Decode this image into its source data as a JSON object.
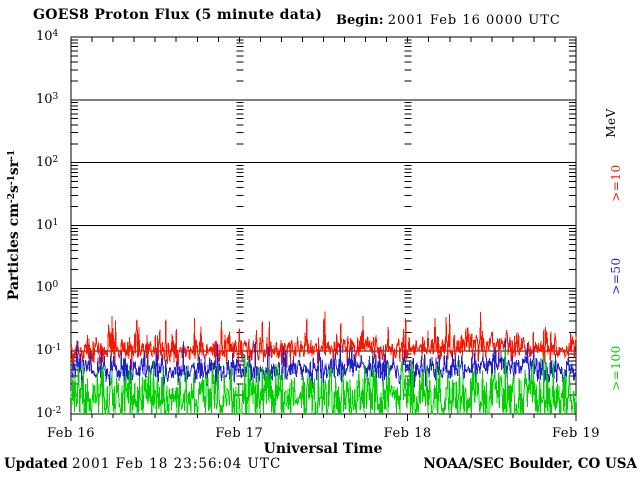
{
  "chart_data": {
    "type": "line",
    "title": "GOES8 Proton Flux (5 minute data)",
    "begin_label": "Begin:",
    "begin_value": "2001 Feb 16 0000 UTC",
    "xlabel": "Universal Time",
    "ylabel_parts": {
      "base": "Particles cm",
      "sup1": "-2",
      "mid1": "s",
      "sup2": "-1",
      "mid2": "sr",
      "sup3": "-1"
    },
    "units_label": "MeV",
    "x_ticks": [
      "Feb 16",
      "Feb 17",
      "Feb 18",
      "Feb 19"
    ],
    "x_range_hours": 72,
    "x_minor_tick_hours": 3,
    "sample_minutes": 5,
    "samples": 864,
    "ylim_log": [
      -2,
      4
    ],
    "y_ticks": [
      {
        "base": "10",
        "exp": "4"
      },
      {
        "base": "10",
        "exp": "3"
      },
      {
        "base": "10",
        "exp": "2"
      },
      {
        "base": "10",
        "exp": "1"
      },
      {
        "base": "10",
        "exp": "0"
      },
      {
        "base": "10",
        "exp": "-1"
      },
      {
        "base": "10",
        "exp": "-2"
      }
    ],
    "grid": "horizontal solid lines at each decade; dashed minor-tick columns at day boundaries Feb 17 and Feb 18",
    "legend_position": "right side, rotated",
    "series": [
      {
        "id": "ge10",
        "name": ">=10 MeV proton flux",
        "label": ">=10",
        "color": "#ff1400",
        "approx_median_flux": 0.1,
        "approx_range_flux": [
          0.06,
          0.45
        ],
        "gen": {
          "seed": 42,
          "trend_log10": [
            -1.02,
            -1.0,
            -1.01,
            -0.99,
            -0.97,
            -1.0,
            -0.96,
            -0.93,
            -0.98,
            -0.94,
            -0.9,
            -0.96,
            -1.0
          ],
          "noise_sd_log10": 0.11,
          "spike_prob": 0.08,
          "spike_max_log10": 0.5
        }
      },
      {
        "id": "ge50",
        "name": ">=50 MeV proton flux",
        "label": ">=50",
        "color": "#2222cc",
        "approx_median_flux": 0.05,
        "approx_range_flux": [
          0.03,
          0.14
        ],
        "gen": {
          "seed": 7,
          "trend_log10": [
            -1.3,
            -1.32,
            -1.3,
            -1.31,
            -1.28,
            -1.3,
            -1.27,
            -1.24,
            -1.3,
            -1.26,
            -1.23,
            -1.27,
            -1.3
          ],
          "noise_sd_log10": 0.11,
          "spike_prob": 0.07,
          "spike_max_log10": 0.4
        }
      },
      {
        "id": "ge100",
        "name": ">=100 MeV proton flux",
        "label": ">=100",
        "color": "#00d000",
        "approx_median_flux": 0.02,
        "approx_range_flux": [
          0.01,
          0.09
        ],
        "gen": {
          "seed": 99,
          "trend_log10": [
            -1.72,
            -1.78,
            -1.73,
            -1.76,
            -1.7,
            -1.74,
            -1.77,
            -1.68,
            -1.74,
            -1.7,
            -1.68,
            -1.73,
            -1.76
          ],
          "noise_sd_log10": 0.24,
          "spike_prob": 0.05,
          "spike_max_log10": 0.45
        }
      }
    ],
    "footer_left_label": "Updated",
    "footer_left_value": "2001 Feb 18 23:56:04 UTC",
    "footer_right": "NOAA/SEC Boulder, CO USA"
  }
}
